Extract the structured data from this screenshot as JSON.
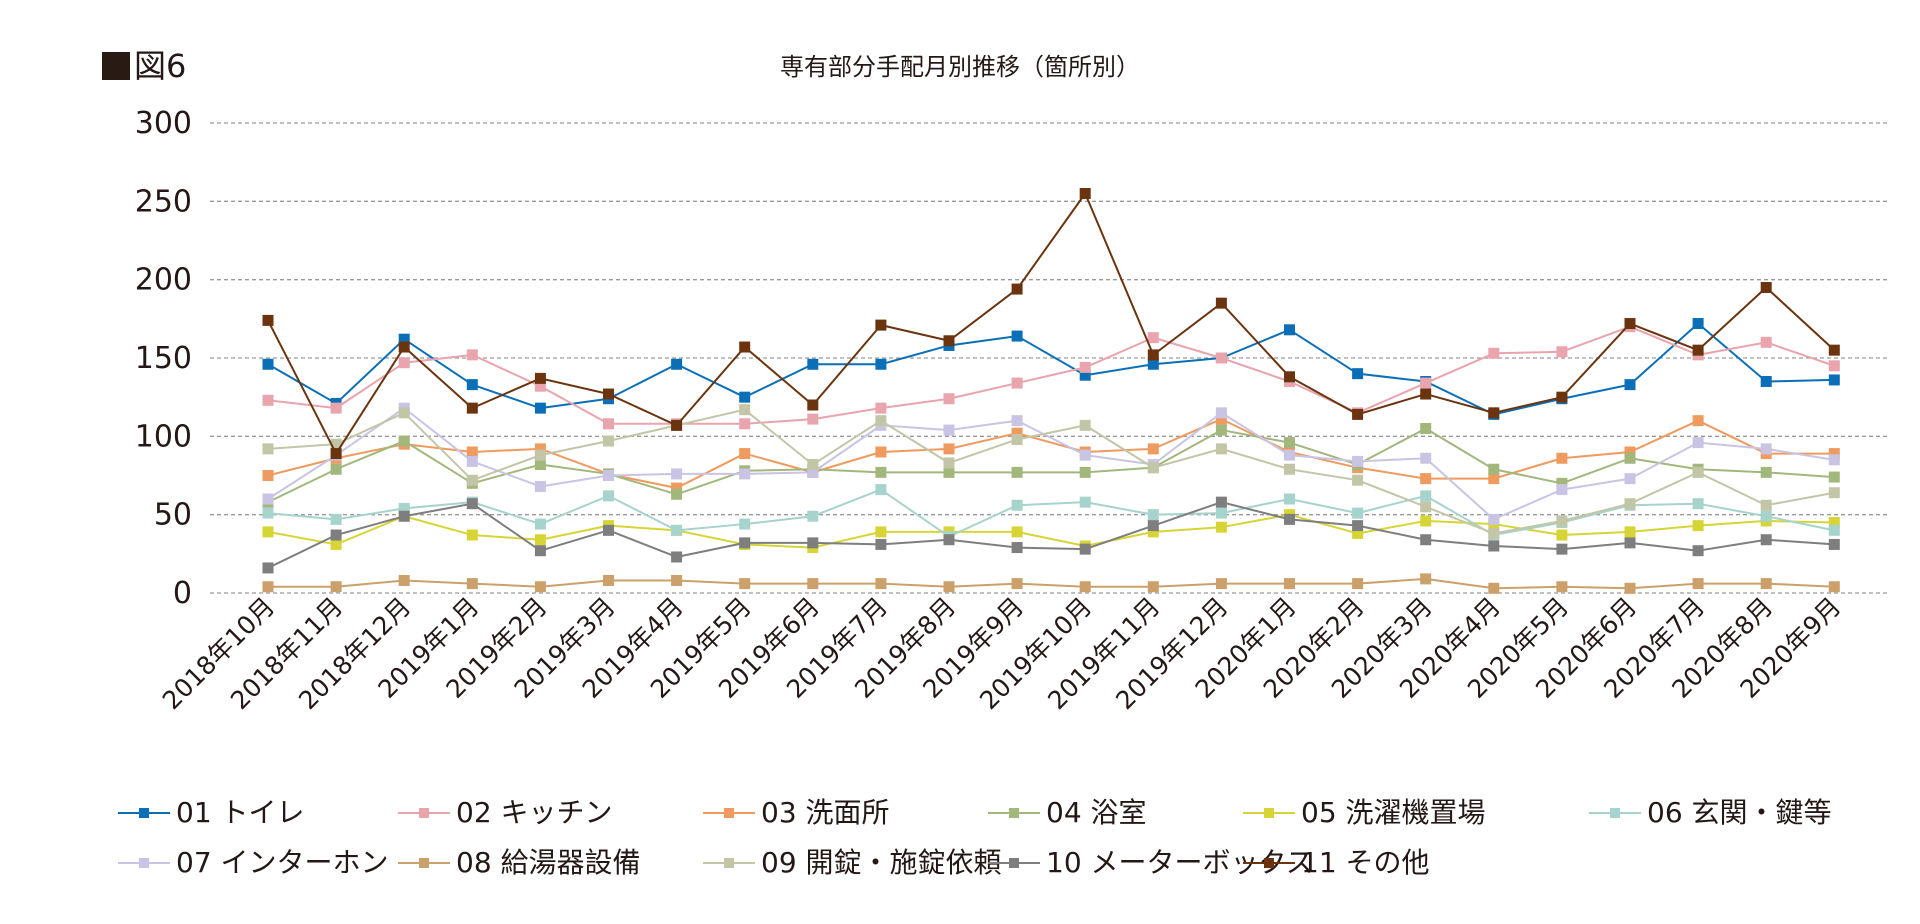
{
  "figure_label": "図6",
  "chart_data": {
    "type": "line",
    "title": "専有部分手配月別推移（箇所別）",
    "xlabel": "",
    "ylabel": "",
    "ylim": [
      0,
      300
    ],
    "yticks": [
      0,
      50,
      100,
      150,
      200,
      250,
      300
    ],
    "grid": true,
    "legend_position": "bottom",
    "categories": [
      "2018年10月",
      "2018年11月",
      "2018年12月",
      "2019年1月",
      "2019年2月",
      "2019年3月",
      "2019年4月",
      "2019年5月",
      "2019年6月",
      "2019年7月",
      "2019年8月",
      "2019年9月",
      "2019年10月",
      "2019年11月",
      "2019年12月",
      "2020年1月",
      "2020年2月",
      "2020年3月",
      "2020年4月",
      "2020年5月",
      "2020年6月",
      "2020年7月",
      "2020年8月",
      "2020年9月"
    ],
    "series": [
      {
        "name": "01 トイレ",
        "color": "#0b6fb8",
        "values": [
          146,
          121,
          162,
          133,
          118,
          124,
          146,
          125,
          146,
          146,
          158,
          164,
          139,
          146,
          150,
          168,
          140,
          135,
          114,
          124,
          133,
          172,
          135,
          136
        ]
      },
      {
        "name": "02 キッチン",
        "color": "#e9a4ad",
        "values": [
          123,
          118,
          147,
          152,
          132,
          108,
          108,
          108,
          111,
          118,
          124,
          134,
          144,
          163,
          150,
          135,
          115,
          134,
          153,
          154,
          170,
          152,
          160,
          145
        ]
      },
      {
        "name": "03 洗面所",
        "color": "#ef9a5e",
        "values": [
          75,
          86,
          95,
          90,
          92,
          76,
          67,
          89,
          77,
          90,
          92,
          102,
          90,
          92,
          111,
          90,
          80,
          73,
          73,
          86,
          90,
          110,
          89,
          89
        ]
      },
      {
        "name": "04 浴室",
        "color": "#a2b77c",
        "values": [
          58,
          79,
          97,
          70,
          82,
          76,
          63,
          78,
          79,
          77,
          77,
          77,
          77,
          80,
          104,
          96,
          82,
          105,
          79,
          70,
          86,
          79,
          77,
          74
        ]
      },
      {
        "name": "05 洗濯機置場",
        "color": "#d7d536",
        "values": [
          39,
          31,
          49,
          37,
          34,
          43,
          40,
          31,
          29,
          39,
          39,
          39,
          30,
          39,
          42,
          50,
          38,
          46,
          44,
          37,
          39,
          43,
          46,
          45
        ]
      },
      {
        "name": "06 玄関・鍵等",
        "color": "#a6d3cc",
        "values": [
          51,
          47,
          54,
          58,
          44,
          62,
          40,
          44,
          49,
          66,
          36,
          56,
          58,
          50,
          51,
          60,
          51,
          62,
          37,
          45,
          56,
          57,
          49,
          40
        ]
      },
      {
        "name": "07 インターホン",
        "color": "#c9c4e4",
        "values": [
          60,
          88,
          118,
          84,
          68,
          75,
          76,
          76,
          77,
          107,
          104,
          110,
          88,
          82,
          115,
          88,
          84,
          86,
          47,
          66,
          73,
          96,
          92,
          85
        ]
      },
      {
        "name": "08 給湯器設備",
        "color": "#cba06a",
        "values": [
          4,
          4,
          8,
          6,
          4,
          8,
          8,
          6,
          6,
          6,
          4,
          6,
          4,
          4,
          6,
          6,
          6,
          9,
          3,
          4,
          3,
          6,
          6,
          4
        ]
      },
      {
        "name": "09 開錠・施錠依頼",
        "color": "#c3c5a7",
        "values": [
          92,
          95,
          115,
          72,
          88,
          97,
          107,
          117,
          82,
          110,
          83,
          98,
          107,
          80,
          92,
          79,
          72,
          55,
          38,
          46,
          57,
          77,
          56,
          64
        ]
      },
      {
        "name": "10 メーターボックス",
        "color": "#7e7e7f",
        "values": [
          16,
          37,
          49,
          57,
          27,
          40,
          23,
          32,
          32,
          31,
          34,
          29,
          28,
          43,
          58,
          47,
          43,
          34,
          30,
          28,
          32,
          27,
          34,
          31
        ]
      },
      {
        "name": "11 その他",
        "color": "#6b340f",
        "values": [
          174,
          89,
          157,
          118,
          137,
          127,
          107,
          157,
          120,
          171,
          161,
          194,
          255,
          152,
          185,
          138,
          114,
          127,
          115,
          125,
          172,
          155,
          195,
          155
        ]
      }
    ]
  }
}
